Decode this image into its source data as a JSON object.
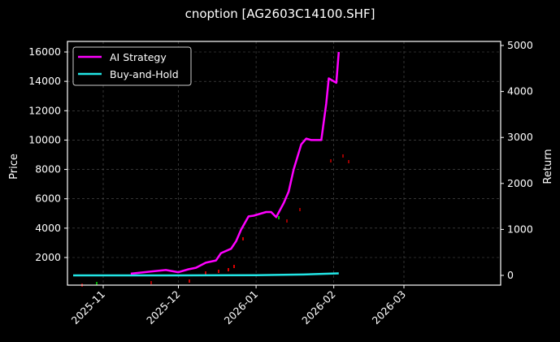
{
  "chart_data": {
    "type": "line",
    "title": "cnoption [AG2603C14100.SHF]",
    "xlabel": "",
    "ylabel": "Price",
    "ylabel_right": "Return",
    "x_ticks": [
      "2025-11",
      "2025-12",
      "2026-01",
      "2026-02",
      "2026-03"
    ],
    "y_ticks_left": [
      2000,
      4000,
      6000,
      8000,
      10000,
      12000,
      14000,
      16000
    ],
    "y_ticks_right": [
      0,
      1000,
      2000,
      3000,
      4000,
      5000
    ],
    "ylim_left": [
      100,
      16700
    ],
    "ylim_right": [
      -200,
      5050
    ],
    "grid": true,
    "legend_position": "upper left",
    "series": [
      {
        "name": "AI Strategy",
        "color": "#ff00ff",
        "axis": "left",
        "x": [
          "2025-11-12",
          "2025-11-20",
          "2025-11-26",
          "2025-12-01",
          "2025-12-05",
          "2025-12-08",
          "2025-12-12",
          "2025-12-16",
          "2025-12-18",
          "2025-12-22",
          "2025-12-24",
          "2025-12-26",
          "2025-12-29",
          "2025-12-31",
          "2026-01-05",
          "2026-01-07",
          "2026-01-09",
          "2026-01-12",
          "2026-01-14",
          "2026-01-16",
          "2026-01-19",
          "2026-01-21",
          "2026-01-23",
          "2026-01-26",
          "2026-01-27",
          "2026-01-29",
          "2026-01-30",
          "2026-02-02",
          "2026-02-03"
        ],
        "values": [
          900,
          1050,
          1150,
          1000,
          1200,
          1300,
          1650,
          1800,
          2300,
          2600,
          3100,
          3900,
          4800,
          4850,
          5100,
          5100,
          4750,
          5700,
          6500,
          8000,
          9700,
          10100,
          10000,
          10000,
          10000,
          12500,
          14200,
          13900,
          16000
        ]
      },
      {
        "name": "Buy-and-Hold",
        "color": "#22e5e5",
        "axis": "right",
        "x": [
          "2025-10-20",
          "2025-12-01",
          "2026-01-01",
          "2026-01-20",
          "2026-02-03"
        ],
        "values": [
          0,
          0,
          5,
          20,
          45
        ]
      }
    ]
  },
  "legend": {
    "items": [
      "AI Strategy",
      "Buy-and-Hold"
    ]
  }
}
